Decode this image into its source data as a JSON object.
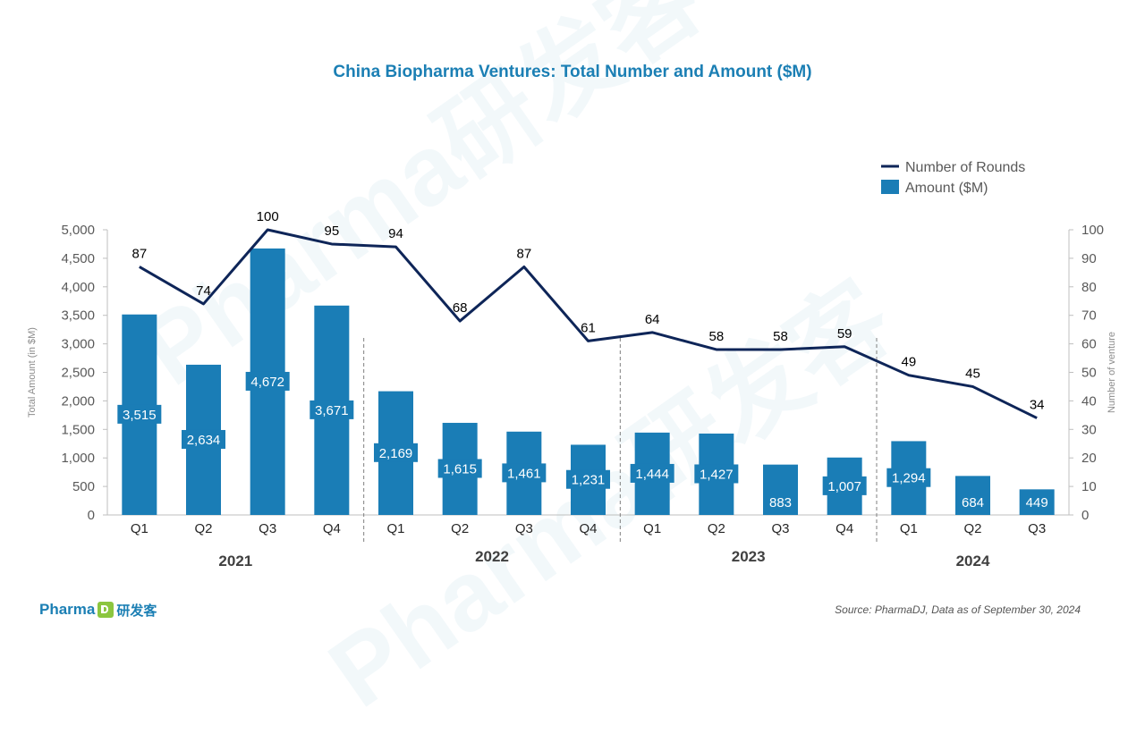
{
  "title": "China Biopharma Ventures:  Total Number and Amount ($M)",
  "source": "Source: PharmaDJ, Data as of September 30, 2024",
  "logo": {
    "text": "Pharma",
    "cn": "研发客"
  },
  "watermark": "Pharma研发客",
  "colors": {
    "bar": "#1a7db6",
    "line": "#0e2558",
    "title": "#1b7fb4",
    "axis_text": "#595959",
    "separator": "#7f7f7f"
  },
  "chart_data": {
    "type": "bar",
    "categories": [
      "Q1",
      "Q2",
      "Q3",
      "Q4",
      "Q1",
      "Q2",
      "Q3",
      "Q4",
      "Q1",
      "Q2",
      "Q3",
      "Q4",
      "Q1",
      "Q2",
      "Q3"
    ],
    "groups": [
      {
        "label": "2021",
        "count": 4
      },
      {
        "label": "2022",
        "count": 4
      },
      {
        "label": "2023",
        "count": 4
      },
      {
        "label": "2024",
        "count": 3
      }
    ],
    "series": [
      {
        "name": "Amount ($M)",
        "kind": "bar",
        "axis": "left",
        "values": [
          3515,
          2634,
          4672,
          3671,
          2169,
          1615,
          1461,
          1231,
          1444,
          1427,
          883,
          1007,
          1294,
          684,
          449
        ],
        "labels": [
          "3,515",
          "2,634",
          "4,672",
          "3,671",
          "2,169",
          "1,615",
          "1,461",
          "1,231",
          "1,444",
          "1,427",
          "883",
          "1,007",
          "1,294",
          "684",
          "449"
        ]
      },
      {
        "name": "Number of Rounds",
        "kind": "line",
        "axis": "right",
        "values": [
          87,
          74,
          100,
          95,
          94,
          68,
          87,
          61,
          64,
          58,
          58,
          59,
          49,
          45,
          34
        ]
      }
    ],
    "ylabel": "Total Amount (in $M)",
    "y2label": "Number of venture",
    "ylim": [
      0,
      5000
    ],
    "y2lim": [
      0,
      100
    ],
    "yticks": [
      "0",
      "500",
      "1,000",
      "1,500",
      "2,000",
      "2,500",
      "3,000",
      "3,500",
      "4,000",
      "4,500",
      "5,000"
    ],
    "y2ticks": [
      "0",
      "10",
      "20",
      "30",
      "40",
      "50",
      "60",
      "70",
      "80",
      "90",
      "100"
    ],
    "legend_position": "top-right",
    "grid": false
  }
}
